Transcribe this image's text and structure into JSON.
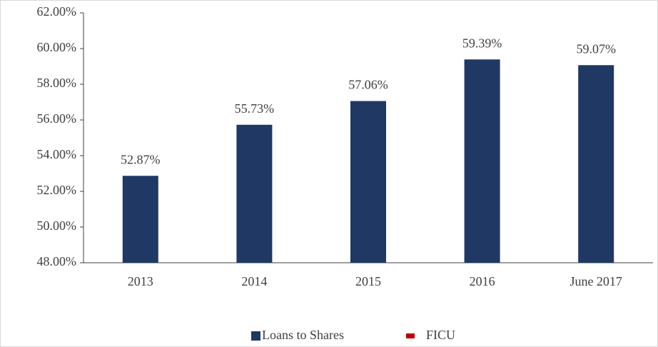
{
  "chart_data": {
    "type": "bar",
    "categories": [
      "2013",
      "2014",
      "2015",
      "2016",
      "June 2017"
    ],
    "series": [
      {
        "name": "Loans to Shares",
        "color": "#1f3864",
        "values": [
          52.87,
          55.73,
          57.06,
          59.39,
          59.07
        ],
        "value_labels": [
          "52.87%",
          "55.73%",
          "57.06%",
          "59.39%",
          "59.07%"
        ]
      },
      {
        "name": "FICU",
        "color": "#c00000",
        "values": [
          null,
          null,
          null,
          null,
          null
        ]
      }
    ],
    "ylim": [
      48,
      62
    ],
    "yticks": [
      {
        "value": 48,
        "label": "48.00%"
      },
      {
        "value": 50,
        "label": "50.00%"
      },
      {
        "value": 52,
        "label": "52.00%"
      },
      {
        "value": 54,
        "label": "54.00%"
      },
      {
        "value": 56,
        "label": "56.00%"
      },
      {
        "value": 58,
        "label": "58.00%"
      },
      {
        "value": 60,
        "label": "60.00%"
      },
      {
        "value": 62,
        "label": "62.00%"
      }
    ],
    "grid": false
  }
}
